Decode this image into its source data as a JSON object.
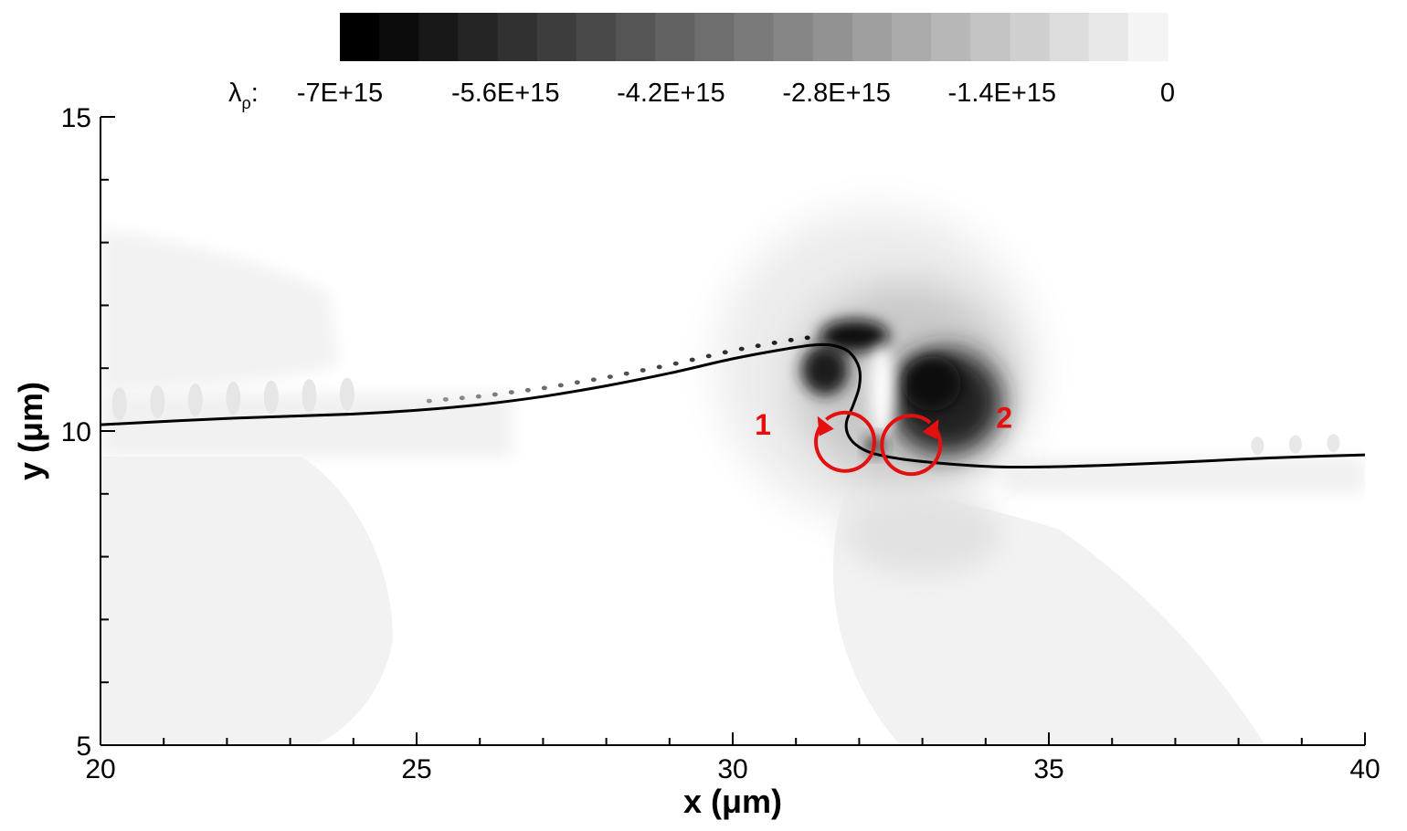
{
  "chart_data": {
    "type": "contour",
    "xlabel": "x (μm)",
    "ylabel": "y (μm)",
    "xlim": [
      20,
      40
    ],
    "ylim": [
      5,
      15
    ],
    "x_ticks": [
      20,
      25,
      30,
      35,
      40
    ],
    "y_ticks": [
      5,
      10,
      15
    ],
    "x_minor_step": 1,
    "y_minor_step": 1,
    "colorbar": {
      "variable_symbol": "λ",
      "variable_subscript": "ρ",
      "variable_suffix": ":",
      "levels": 21,
      "min": -7000000000000000.0,
      "max": 0,
      "tick_values": [
        -7000000000000000.0,
        -5600000000000000.0,
        -4200000000000000.0,
        -2800000000000000.0,
        -1400000000000000.0,
        0
      ],
      "tick_labels": [
        "-7E+15",
        "-5.6E+15",
        "-4.2E+15",
        "-2.8E+15",
        "-1.4E+15",
        "0"
      ],
      "colors": {
        "min": "#000000",
        "max": "#f4f4f4"
      }
    },
    "interface_curve": [
      [
        20,
        10.1
      ],
      [
        22,
        10.2
      ],
      [
        24,
        10.27
      ],
      [
        25,
        10.33
      ],
      [
        26,
        10.42
      ],
      [
        27,
        10.55
      ],
      [
        28,
        10.72
      ],
      [
        29,
        10.92
      ],
      [
        30,
        11.15
      ],
      [
        30.8,
        11.3
      ],
      [
        31.3,
        11.37
      ],
      [
        31.6,
        11.36
      ],
      [
        31.85,
        11.25
      ],
      [
        32.0,
        11.0
      ],
      [
        32.0,
        10.7
      ],
      [
        31.9,
        10.4
      ],
      [
        31.8,
        10.15
      ],
      [
        31.82,
        9.95
      ],
      [
        31.95,
        9.78
      ],
      [
        32.2,
        9.65
      ],
      [
        32.7,
        9.55
      ],
      [
        33.5,
        9.47
      ],
      [
        34.2,
        9.43
      ],
      [
        35,
        9.43
      ],
      [
        36,
        9.46
      ],
      [
        37,
        9.5
      ],
      [
        38,
        9.55
      ],
      [
        39,
        9.59
      ],
      [
        40,
        9.62
      ]
    ],
    "vortex_annotations": [
      {
        "label": "1",
        "x": 31.1,
        "y": 10.45,
        "color": "#e41010"
      },
      {
        "label": "2",
        "x": 33.5,
        "y": 10.4,
        "color": "#e41010"
      }
    ]
  }
}
